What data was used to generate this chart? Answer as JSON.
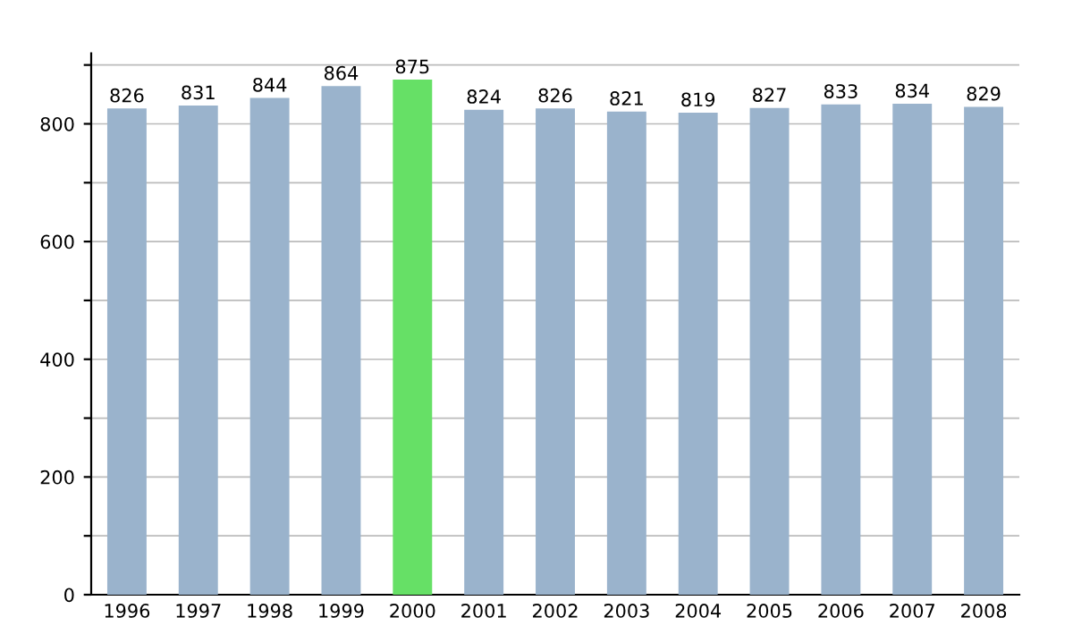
{
  "chart_data": {
    "type": "bar",
    "categories": [
      "1996",
      "1997",
      "1998",
      "1999",
      "2000",
      "2001",
      "2002",
      "2003",
      "2004",
      "2005",
      "2006",
      "2007",
      "2008"
    ],
    "values": [
      826,
      831,
      844,
      864,
      875,
      824,
      826,
      821,
      819,
      827,
      833,
      834,
      829
    ],
    "colors": [
      "#9ab3cc",
      "#9ab3cc",
      "#9ab3cc",
      "#9ab3cc",
      "#66e066",
      "#9ab3cc",
      "#9ab3cc",
      "#9ab3cc",
      "#9ab3cc",
      "#9ab3cc",
      "#9ab3cc",
      "#9ab3cc",
      "#9ab3cc"
    ],
    "data_labels": true,
    "ylim": [
      0,
      920
    ],
    "yticks": [
      0,
      {
        "value": 100,
        "label": null
      },
      200,
      {
        "value": 300,
        "label": null
      },
      400,
      {
        "value": 500,
        "label": null
      },
      600,
      {
        "value": 700,
        "label": null
      },
      800,
      {
        "value": 900,
        "label": null
      }
    ],
    "grid": "y",
    "legend": false
  }
}
